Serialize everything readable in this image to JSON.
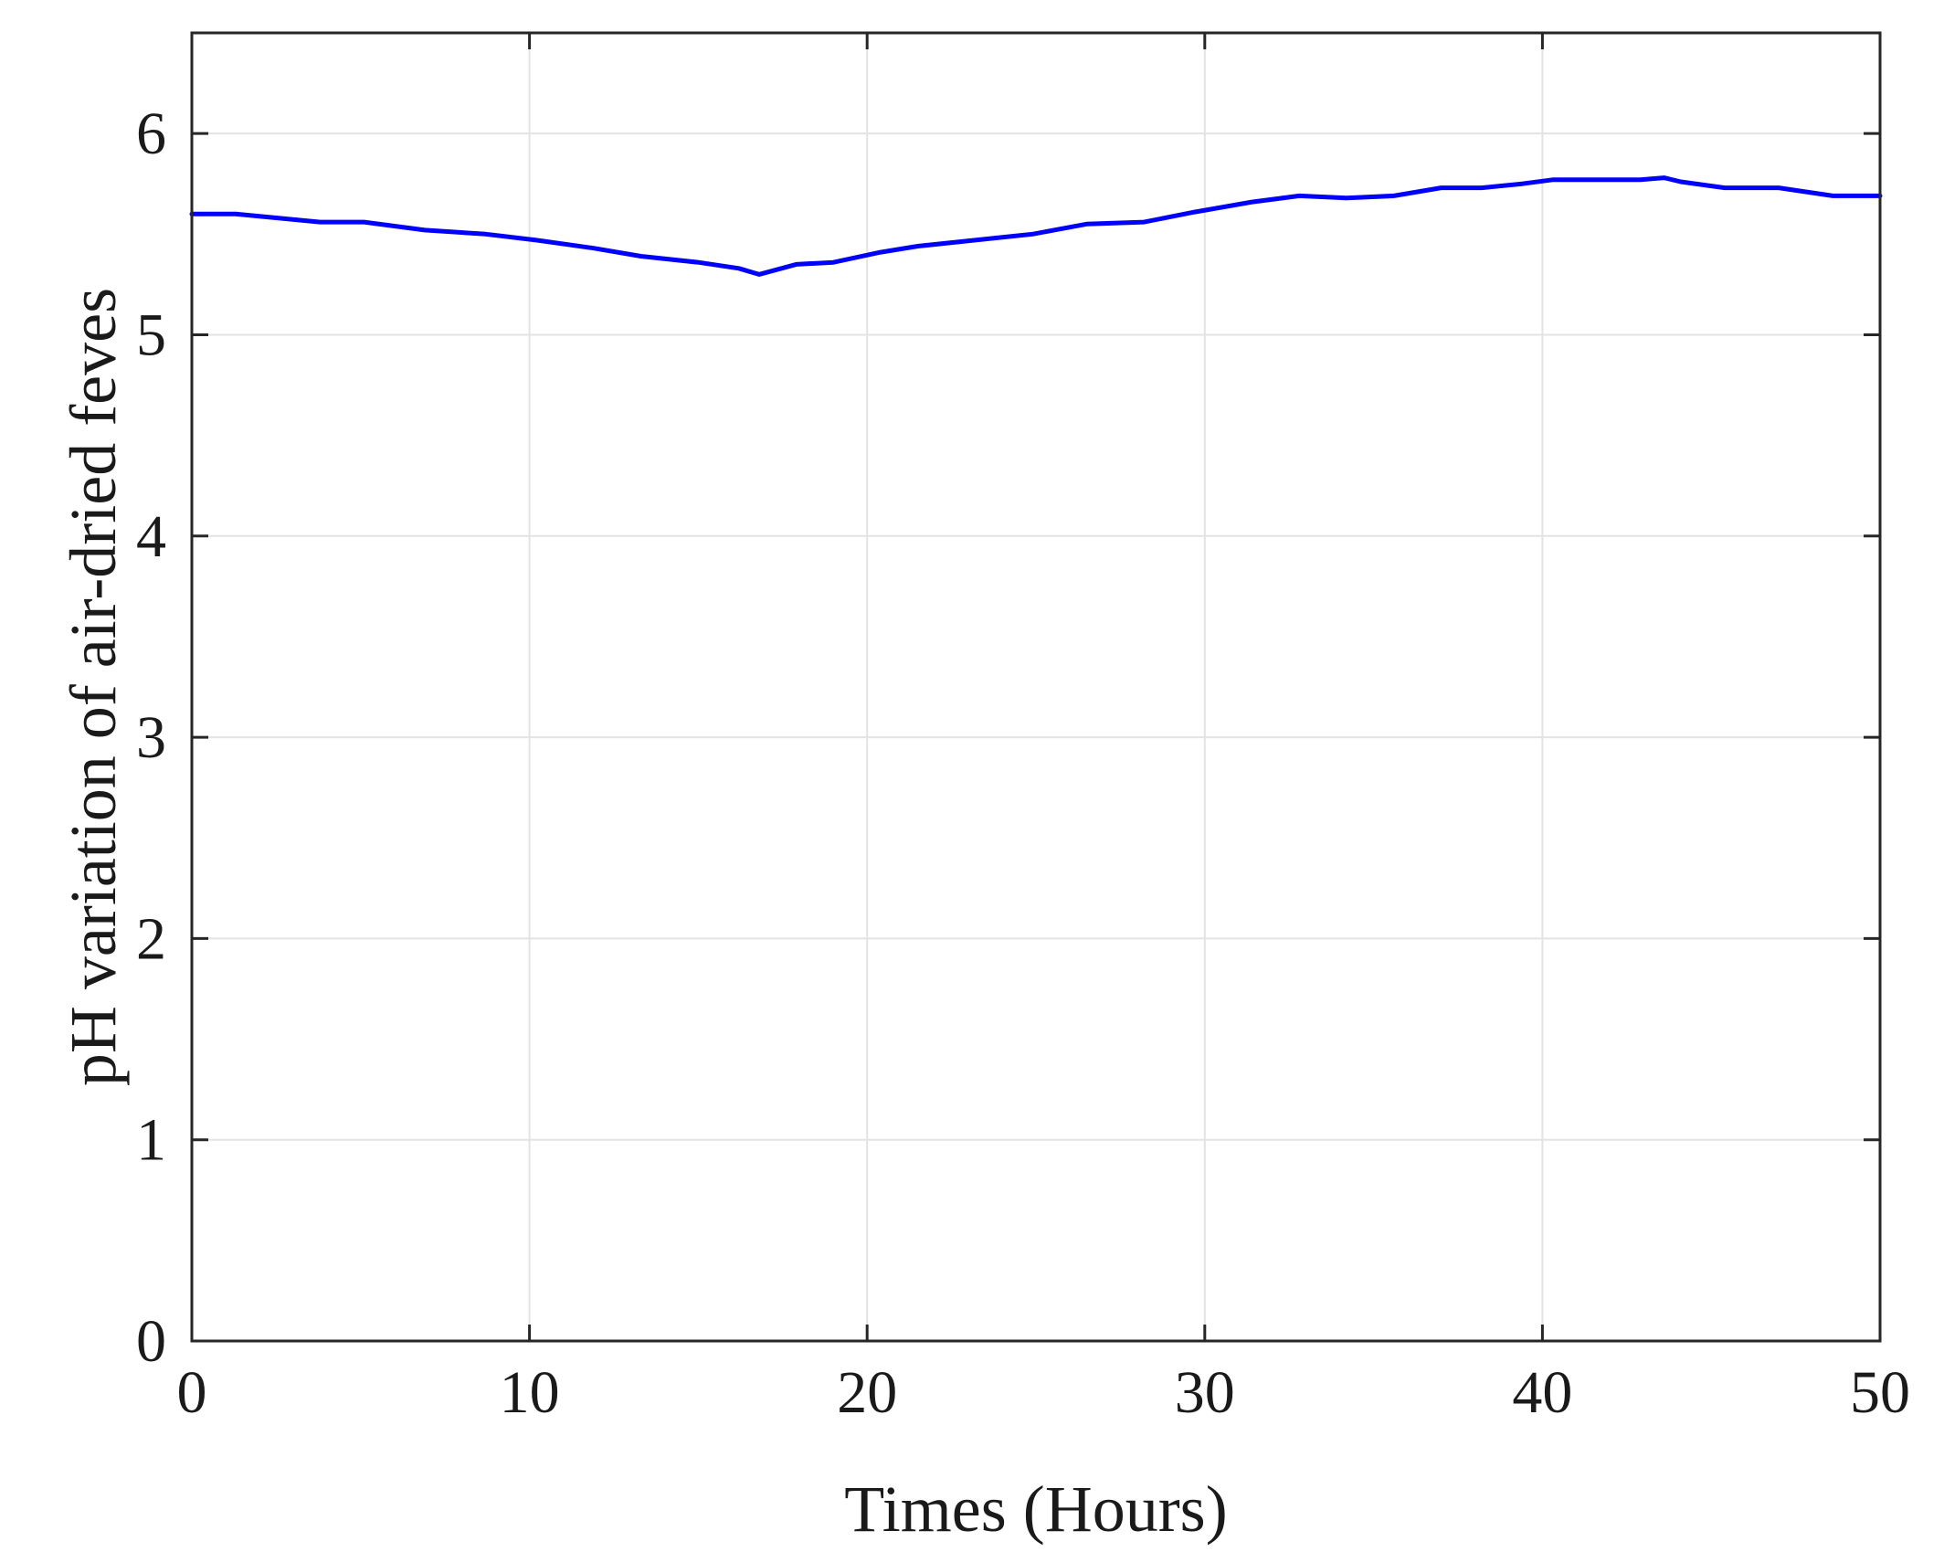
{
  "chart_data": {
    "type": "line",
    "title": "",
    "xlabel": "Times (Hours)",
    "ylabel": "pH variation of air-dried feves",
    "xlim": [
      0,
      50
    ],
    "ylim": [
      0,
      6.5
    ],
    "xticks": [
      0,
      10,
      20,
      30,
      40,
      50
    ],
    "yticks": [
      0,
      1,
      2,
      3,
      4,
      5,
      6
    ],
    "grid": true,
    "legend": "none",
    "series": [
      {
        "color": "#0000ff",
        "x": [
          0,
          1.3,
          3.8,
          5.1,
          6.9,
          8.7,
          10.2,
          11.9,
          13.3,
          15.0,
          16.2,
          16.8,
          17.9,
          19.0,
          20.4,
          21.5,
          23.2,
          24.9,
          26.5,
          28.2,
          29.7,
          31.4,
          32.8,
          34.2,
          35.6,
          37.0,
          38.2,
          39.4,
          40.3,
          41.7,
          42.9,
          43.6,
          44.1,
          45.4,
          47.0,
          48.6,
          50.0
        ],
        "y": [
          5.6,
          5.6,
          5.56,
          5.56,
          5.52,
          5.5,
          5.47,
          5.43,
          5.39,
          5.36,
          5.33,
          5.3,
          5.35,
          5.36,
          5.41,
          5.44,
          5.47,
          5.5,
          5.55,
          5.56,
          5.61,
          5.66,
          5.69,
          5.68,
          5.69,
          5.73,
          5.73,
          5.75,
          5.77,
          5.77,
          5.77,
          5.78,
          5.76,
          5.73,
          5.73,
          5.69,
          5.69
        ]
      }
    ]
  }
}
